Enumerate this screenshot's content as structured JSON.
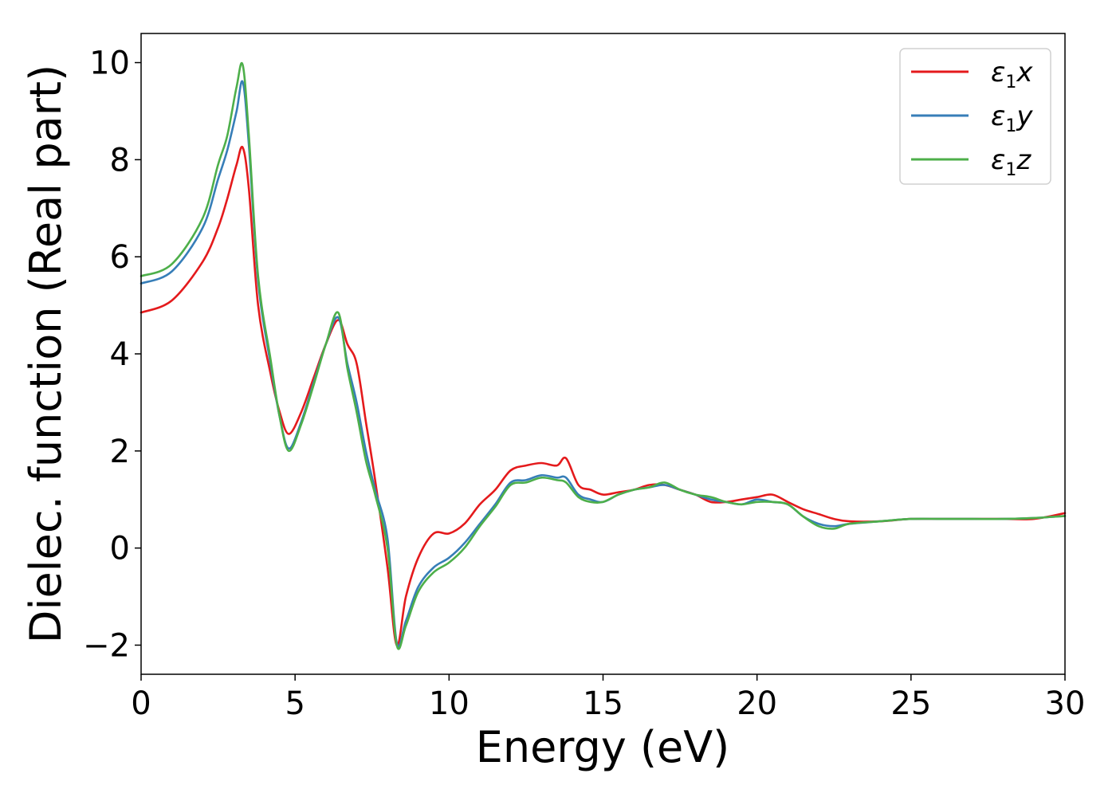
{
  "chart_data": {
    "type": "line",
    "xlabel": "Energy (eV)",
    "ylabel": "Dielec. function (Real part)",
    "xlim": [
      0,
      30
    ],
    "ylim": [
      -2.6,
      10.6
    ],
    "xticks": [
      0,
      5,
      10,
      15,
      20,
      25,
      30
    ],
    "xtick_labels": [
      "0",
      "5",
      "10",
      "15",
      "20",
      "25",
      "30"
    ],
    "yticks": [
      -2,
      0,
      2,
      4,
      6,
      8,
      10
    ],
    "ytick_labels": [
      "−2",
      "0",
      "2",
      "4",
      "6",
      "8",
      "10"
    ],
    "grid": false,
    "legend_position": "top-right",
    "series": [
      {
        "name": "ε1x",
        "legend_main": "ε",
        "legend_sub": "1",
        "legend_suffix": "x",
        "color": "#e41a1c",
        "x": [
          0,
          1,
          2,
          2.5,
          2.8,
          3.1,
          3.3,
          3.5,
          3.8,
          4.2,
          4.5,
          4.8,
          5.2,
          5.6,
          6.0,
          6.4,
          6.7,
          7.0,
          7.3,
          7.6,
          8.0,
          8.3,
          8.6,
          9.0,
          9.5,
          10.0,
          10.5,
          11.0,
          11.5,
          12.0,
          12.5,
          13.0,
          13.5,
          13.8,
          14.2,
          14.6,
          15.0,
          15.5,
          16.0,
          16.5,
          17.0,
          17.5,
          18.0,
          18.5,
          19.0,
          19.5,
          20.0,
          20.5,
          21.0,
          21.5,
          22.0,
          22.5,
          23.0,
          24.0,
          25.0,
          26.0,
          27.0,
          28.0,
          29.0,
          30.0
        ],
        "y": [
          4.85,
          5.1,
          5.9,
          6.6,
          7.2,
          7.9,
          8.25,
          7.4,
          5.0,
          3.6,
          2.8,
          2.35,
          2.8,
          3.5,
          4.2,
          4.7,
          4.2,
          3.8,
          2.6,
          1.4,
          -0.4,
          -2.0,
          -1.0,
          -0.2,
          0.3,
          0.3,
          0.5,
          0.9,
          1.2,
          1.6,
          1.7,
          1.75,
          1.7,
          1.85,
          1.3,
          1.2,
          1.1,
          1.15,
          1.2,
          1.3,
          1.3,
          1.2,
          1.1,
          0.95,
          0.95,
          1.0,
          1.05,
          1.1,
          0.95,
          0.8,
          0.7,
          0.6,
          0.55,
          0.55,
          0.6,
          0.6,
          0.6,
          0.6,
          0.6,
          0.72
        ]
      },
      {
        "name": "ε1y",
        "legend_main": "ε",
        "legend_sub": "1",
        "legend_suffix": "y",
        "color": "#377eb8",
        "x": [
          0,
          1,
          2,
          2.5,
          2.8,
          3.1,
          3.3,
          3.5,
          3.8,
          4.2,
          4.5,
          4.8,
          5.2,
          5.6,
          6.0,
          6.4,
          6.7,
          7.0,
          7.3,
          7.6,
          8.0,
          8.3,
          8.6,
          9.0,
          9.5,
          10.0,
          10.5,
          11.0,
          11.5,
          12.0,
          12.5,
          13.0,
          13.5,
          13.8,
          14.2,
          14.6,
          15.0,
          15.5,
          16.0,
          16.5,
          17.0,
          17.5,
          18.0,
          18.5,
          19.0,
          19.5,
          20.0,
          20.5,
          21.0,
          21.5,
          22.0,
          22.5,
          23.0,
          24.0,
          25.0,
          26.0,
          27.0,
          28.0,
          29.0,
          30.0
        ],
        "y": [
          5.45,
          5.7,
          6.6,
          7.6,
          8.2,
          9.0,
          9.6,
          8.3,
          5.5,
          3.8,
          2.7,
          2.05,
          2.6,
          3.4,
          4.2,
          4.75,
          3.8,
          3.0,
          2.0,
          1.2,
          0.2,
          -1.95,
          -1.5,
          -0.8,
          -0.4,
          -0.2,
          0.1,
          0.5,
          0.9,
          1.35,
          1.4,
          1.5,
          1.45,
          1.45,
          1.1,
          1.0,
          0.95,
          1.1,
          1.2,
          1.25,
          1.3,
          1.2,
          1.1,
          1.0,
          0.95,
          0.9,
          1.0,
          0.95,
          0.9,
          0.65,
          0.5,
          0.45,
          0.5,
          0.55,
          0.6,
          0.6,
          0.6,
          0.6,
          0.62,
          0.66
        ]
      },
      {
        "name": "ε1z",
        "legend_main": "ε",
        "legend_sub": "1",
        "legend_suffix": "z",
        "color": "#4daf4a",
        "x": [
          0,
          1,
          2,
          2.5,
          2.8,
          3.1,
          3.3,
          3.5,
          3.8,
          4.2,
          4.5,
          4.8,
          5.2,
          5.6,
          6.0,
          6.4,
          6.7,
          7.0,
          7.3,
          7.6,
          8.0,
          8.3,
          8.6,
          9.0,
          9.5,
          10.0,
          10.5,
          11.0,
          11.5,
          12.0,
          12.5,
          13.0,
          13.5,
          13.8,
          14.2,
          14.6,
          15.0,
          15.5,
          16.0,
          16.5,
          17.0,
          17.5,
          18.0,
          18.5,
          19.0,
          19.5,
          20.0,
          20.5,
          21.0,
          21.5,
          22.0,
          22.5,
          23.0,
          24.0,
          25.0,
          26.0,
          27.0,
          28.0,
          29.0,
          30.0
        ],
        "y": [
          5.6,
          5.85,
          6.8,
          7.9,
          8.5,
          9.5,
          9.95,
          8.5,
          5.6,
          3.9,
          2.7,
          2.0,
          2.55,
          3.35,
          4.2,
          4.85,
          3.7,
          2.8,
          1.8,
          1.1,
          0.0,
          -2.0,
          -1.6,
          -0.9,
          -0.5,
          -0.3,
          0.0,
          0.45,
          0.85,
          1.3,
          1.35,
          1.45,
          1.4,
          1.35,
          1.05,
          0.95,
          0.95,
          1.1,
          1.2,
          1.25,
          1.35,
          1.2,
          1.1,
          1.05,
          0.95,
          0.9,
          0.95,
          0.95,
          0.9,
          0.65,
          0.45,
          0.4,
          0.5,
          0.55,
          0.6,
          0.6,
          0.6,
          0.6,
          0.62,
          0.66
        ]
      }
    ]
  }
}
